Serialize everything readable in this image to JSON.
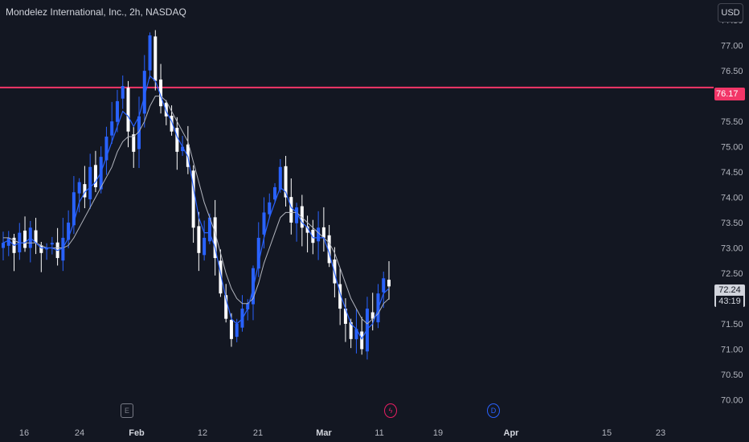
{
  "header": {
    "title": "Mondelez International, Inc., 2h, NASDAQ",
    "currency": "USD"
  },
  "horizontal_line": {
    "price": "76.17",
    "color": "#f23668"
  },
  "last_price": {
    "value": "72.24",
    "countdown": "43:19"
  },
  "events": [
    {
      "icon": "earnings-icon",
      "label": "E",
      "color": "#787b86"
    },
    {
      "icon": "split-icon",
      "label": "ϟ",
      "color": "#e91e63"
    },
    {
      "icon": "dividend-icon",
      "label": "D",
      "color": "#2962ff"
    }
  ],
  "chart_data": {
    "type": "candlestick",
    "title": "Mondelez International, Inc., 2h, NASDAQ",
    "y_ticks": [
      "77.50",
      "77.00",
      "76.50",
      "76.00",
      "75.50",
      "75.00",
      "74.50",
      "74.00",
      "73.50",
      "73.00",
      "72.50",
      "72.00",
      "71.50",
      "71.00",
      "70.50",
      "70.00"
    ],
    "ylim": [
      69.8,
      77.55
    ],
    "x_ticks": [
      {
        "label": "16",
        "bold": false
      },
      {
        "label": "24",
        "bold": false
      },
      {
        "label": "Feb",
        "bold": true
      },
      {
        "label": "12",
        "bold": false
      },
      {
        "label": "21",
        "bold": false
      },
      {
        "label": "Mar",
        "bold": true
      },
      {
        "label": "11",
        "bold": false
      },
      {
        "label": "19",
        "bold": false
      },
      {
        "label": "Apr",
        "bold": true
      },
      {
        "label": "15",
        "bold": false
      },
      {
        "label": "23",
        "bold": false
      }
    ],
    "close_path": [
      73.1,
      73.2,
      72.9,
      73.3,
      73.0,
      73.4,
      73.1,
      72.9,
      73.0,
      73.1,
      72.8,
      73.2,
      73.5,
      74.1,
      74.3,
      74.0,
      74.6,
      74.2,
      74.8,
      75.2,
      75.5,
      75.9,
      76.2,
      75.3,
      74.9,
      75.6,
      76.5,
      77.2,
      76.3,
      75.8,
      75.6,
      75.3,
      74.9,
      75.0,
      74.6,
      73.4,
      72.9,
      73.2,
      73.6,
      72.8,
      72.1,
      71.6,
      71.2,
      71.5,
      71.8,
      71.9,
      72.6,
      73.2,
      73.7,
      73.9,
      74.2,
      74.6,
      74.0,
      73.5,
      73.8,
      73.4,
      73.3,
      73.1,
      73.4,
      73.2,
      72.7,
      72.3,
      71.8,
      71.5,
      71.2,
      71.4,
      71.0,
      71.8,
      71.6,
      72.1,
      72.4,
      72.24
    ],
    "sma_fast": [
      73.1,
      73.15,
      73.05,
      73.1,
      73.1,
      73.2,
      73.1,
      73.0,
      73.0,
      73.0,
      72.95,
      73.0,
      73.2,
      73.5,
      73.9,
      74.1,
      74.2,
      74.3,
      74.5,
      74.8,
      75.1,
      75.4,
      75.7,
      75.6,
      75.4,
      75.6,
      76.0,
      76.4,
      76.3,
      76.0,
      75.7,
      75.5,
      75.2,
      75.0,
      74.8,
      74.2,
      73.6,
      73.3,
      73.3,
      73.0,
      72.5,
      72.0,
      71.6,
      71.5,
      71.6,
      71.8,
      72.2,
      72.7,
      73.2,
      73.6,
      73.9,
      74.2,
      74.1,
      73.8,
      73.7,
      73.5,
      73.4,
      73.2,
      73.2,
      73.2,
      72.9,
      72.5,
      72.1,
      71.8,
      71.5,
      71.4,
      71.2,
      71.4,
      71.5,
      71.8,
      72.1,
      72.2
    ],
    "sma_slow": [
      73.2,
      73.2,
      73.15,
      73.1,
      73.1,
      73.1,
      73.1,
      73.05,
      73.0,
      73.0,
      73.0,
      73.0,
      73.05,
      73.2,
      73.4,
      73.6,
      73.8,
      74.0,
      74.2,
      74.4,
      74.6,
      74.9,
      75.1,
      75.2,
      75.2,
      75.3,
      75.5,
      75.8,
      76.0,
      76.0,
      75.9,
      75.7,
      75.5,
      75.3,
      75.1,
      74.7,
      74.3,
      73.9,
      73.6,
      73.3,
      72.9,
      72.5,
      72.2,
      72.0,
      71.9,
      71.9,
      72.0,
      72.3,
      72.7,
      73.0,
      73.3,
      73.6,
      73.7,
      73.7,
      73.7,
      73.6,
      73.5,
      73.4,
      73.3,
      73.2,
      73.1,
      72.9,
      72.6,
      72.3,
      72.0,
      71.8,
      71.6,
      71.5,
      71.6,
      71.7,
      71.9,
      72.0
    ],
    "up_color": "#2962ff",
    "down_color": "#ffffff",
    "sma_fast_color": "#2962ff",
    "sma_slow_color": "#b2b5be"
  }
}
